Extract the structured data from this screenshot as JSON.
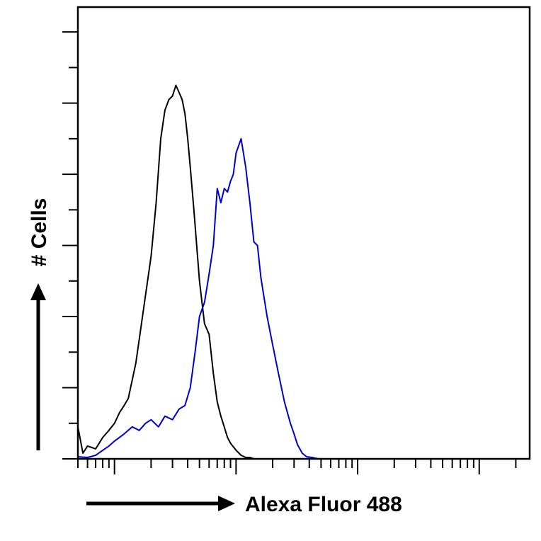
{
  "chart_data": {
    "type": "line",
    "title": "",
    "xlabel": "Alexa Fluor 488",
    "ylabel": "# Cells",
    "x_scale": "log",
    "xlim": [
      0.5,
      2600
    ],
    "ylim": [
      0,
      6.35
    ],
    "grid": false,
    "legend": "none",
    "colors": {
      "axes": "#000000",
      "control": "#000000",
      "sample": "#0000cc"
    },
    "series": [
      {
        "x": [
          0.5,
          0.55,
          0.6,
          0.7,
          0.8,
          0.9,
          1.0,
          1.1,
          1.2,
          1.3,
          1.5,
          1.7,
          2.0,
          2.2,
          2.4,
          2.6,
          2.8,
          3.0,
          3.2,
          3.4,
          3.6,
          3.8,
          4.0,
          4.2,
          4.5,
          5.0,
          5.5,
          6.0,
          6.5,
          7.0,
          7.5,
          8.0,
          8.5,
          9.0,
          10.0,
          11.0,
          12.0,
          13.0,
          14.0,
          15.0,
          16.0,
          17.0,
          18.0
        ],
        "y": [
          0.45,
          0.08,
          0.18,
          0.14,
          0.3,
          0.4,
          0.5,
          0.65,
          0.75,
          0.85,
          1.35,
          2.0,
          2.85,
          3.6,
          4.5,
          4.9,
          5.05,
          5.1,
          5.25,
          5.15,
          5.05,
          4.85,
          4.5,
          4.1,
          3.5,
          2.5,
          1.9,
          1.75,
          1.2,
          0.8,
          0.6,
          0.45,
          0.3,
          0.22,
          0.12,
          0.05,
          0.02,
          0.02,
          0.0,
          0.0,
          0.0,
          0.0,
          0.0
        ]
      },
      {
        "x": [
          0.5,
          0.6,
          0.7,
          0.8,
          0.9,
          1.0,
          1.2,
          1.4,
          1.6,
          1.8,
          2.0,
          2.3,
          2.6,
          3.0,
          3.4,
          3.8,
          4.2,
          4.6,
          5.0,
          5.5,
          6.0,
          6.5,
          7.0,
          7.5,
          8.0,
          8.5,
          9.0,
          9.5,
          10.0,
          11.0,
          12.0,
          13.0,
          14.0,
          15.0,
          16.0,
          18.0,
          20.0,
          22.0,
          25.0,
          28.0,
          30.0,
          32.0,
          35.0,
          38.0,
          42.0,
          48.0
        ],
        "y": [
          0.03,
          0.02,
          0.05,
          0.12,
          0.18,
          0.25,
          0.35,
          0.45,
          0.4,
          0.5,
          0.55,
          0.45,
          0.6,
          0.55,
          0.7,
          0.75,
          1.0,
          1.5,
          2.0,
          2.2,
          2.6,
          3.0,
          3.8,
          3.6,
          3.8,
          3.75,
          3.9,
          4.0,
          4.3,
          4.5,
          4.1,
          3.6,
          3.05,
          3.0,
          2.55,
          2.0,
          1.6,
          1.25,
          0.8,
          0.5,
          0.35,
          0.2,
          0.08,
          0.03,
          0.02,
          0.0
        ]
      }
    ]
  }
}
